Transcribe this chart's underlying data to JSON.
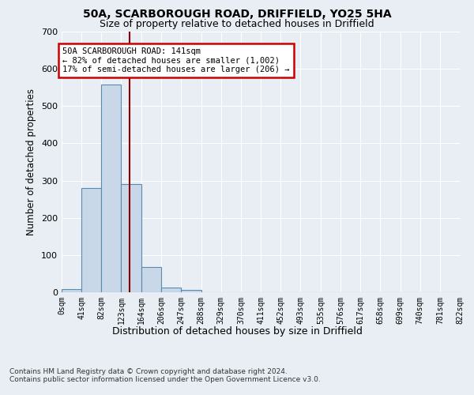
{
  "title_line1": "50A, SCARBOROUGH ROAD, DRIFFIELD, YO25 5HA",
  "title_line2": "Size of property relative to detached houses in Driffield",
  "xlabel": "Distribution of detached houses by size in Driffield",
  "ylabel": "Number of detached properties",
  "bin_edges": [
    0,
    41,
    82,
    123,
    164,
    206,
    247,
    288,
    329,
    370,
    411,
    452,
    493,
    535,
    576,
    617,
    658,
    699,
    740,
    781,
    822
  ],
  "bar_heights": [
    8,
    281,
    557,
    291,
    68,
    13,
    7,
    0,
    0,
    0,
    0,
    0,
    0,
    0,
    0,
    0,
    0,
    0,
    0,
    0
  ],
  "bar_color": "#c8d8e8",
  "bar_edge_color": "#5a8ab0",
  "vline_x": 141,
  "vline_color": "#8b0000",
  "ylim": [
    0,
    700
  ],
  "yticks": [
    0,
    100,
    200,
    300,
    400,
    500,
    600,
    700
  ],
  "annotation_text": "50A SCARBOROUGH ROAD: 141sqm\n← 82% of detached houses are smaller (1,002)\n17% of semi-detached houses are larger (206) →",
  "annotation_box_color": "#ffffff",
  "annotation_box_edge_color": "#cc0000",
  "footer_line1": "Contains HM Land Registry data © Crown copyright and database right 2024.",
  "footer_line2": "Contains public sector information licensed under the Open Government Licence v3.0.",
  "bg_color": "#e8eef4",
  "plot_bg_color": "#e8eef4",
  "grid_color": "#ffffff",
  "tick_labels": [
    "0sqm",
    "41sqm",
    "82sqm",
    "123sqm",
    "164sqm",
    "206sqm",
    "247sqm",
    "288sqm",
    "329sqm",
    "370sqm",
    "411sqm",
    "452sqm",
    "493sqm",
    "535sqm",
    "576sqm",
    "617sqm",
    "658sqm",
    "699sqm",
    "740sqm",
    "781sqm",
    "822sqm"
  ]
}
